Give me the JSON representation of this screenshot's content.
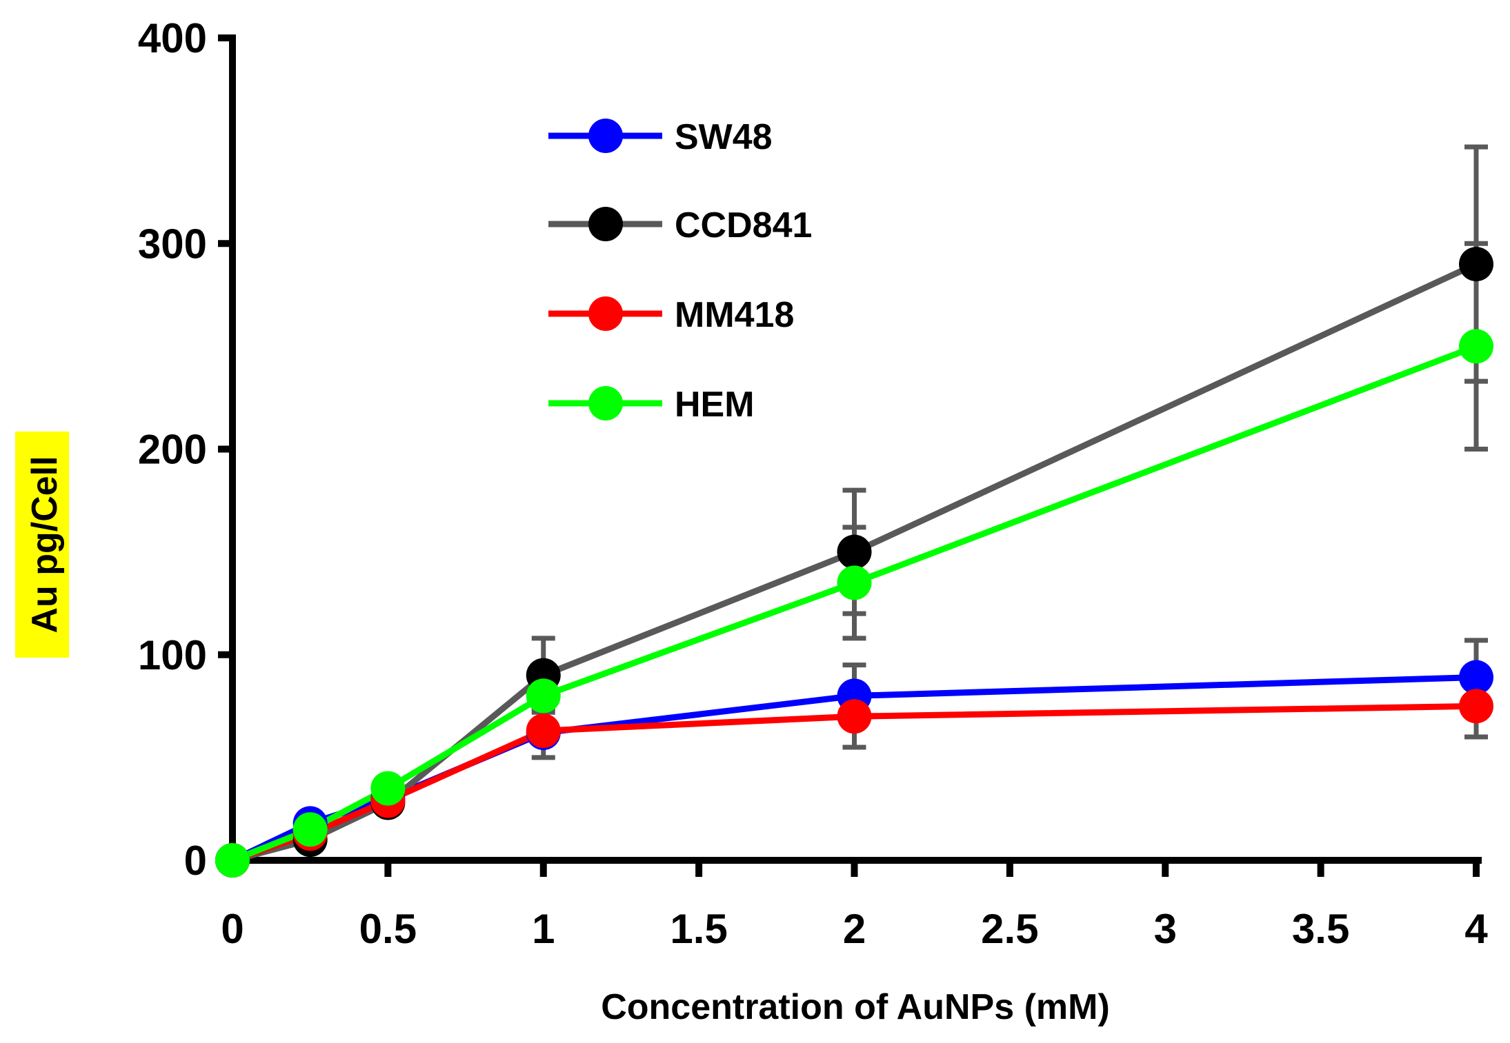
{
  "chart_data": {
    "type": "line",
    "title": "",
    "xlabel": "Concentration of AuNPs (mM)",
    "ylabel": "Au pg/Cell",
    "ylabel_highlight": "#ffff00",
    "xlim": [
      0,
      4
    ],
    "ylim": [
      0,
      400
    ],
    "x_ticks": [
      0,
      0.5,
      1,
      1.5,
      2,
      2.5,
      3,
      3.5,
      4
    ],
    "x_tick_labels": [
      "0",
      "0.5",
      "1",
      "1.5",
      "2",
      "2.5",
      "3",
      "3.5",
      "4"
    ],
    "y_ticks": [
      0,
      100,
      200,
      300,
      400
    ],
    "y_tick_labels": [
      "0",
      "100",
      "200",
      "300",
      "400"
    ],
    "grid": false,
    "legend_position": "top-left",
    "x": [
      0,
      0.25,
      0.5,
      1,
      2,
      4
    ],
    "series": [
      {
        "name": "SW48",
        "line_color": "#0000ff",
        "marker_color": "#0000ff",
        "values": [
          0,
          18,
          30,
          62,
          80,
          89
        ],
        "errors": [
          null,
          null,
          null,
          12,
          15,
          18
        ]
      },
      {
        "name": "CCD841",
        "line_color": "#595959",
        "marker_color": "#000000",
        "values": [
          0,
          10,
          28,
          90,
          150,
          290
        ],
        "errors": [
          null,
          null,
          null,
          18,
          30,
          57
        ]
      },
      {
        "name": "MM418",
        "line_color": "#ff0000",
        "marker_color": "#ff0000",
        "values": [
          0,
          13,
          29,
          63,
          70,
          75
        ],
        "errors": [
          null,
          null,
          null,
          null,
          15,
          15
        ]
      },
      {
        "name": "HEM",
        "line_color": "#00ff00",
        "marker_color": "#00ff00",
        "values": [
          0,
          15,
          35,
          80,
          135,
          250
        ],
        "errors": [
          null,
          null,
          null,
          null,
          27,
          50
        ]
      }
    ]
  }
}
